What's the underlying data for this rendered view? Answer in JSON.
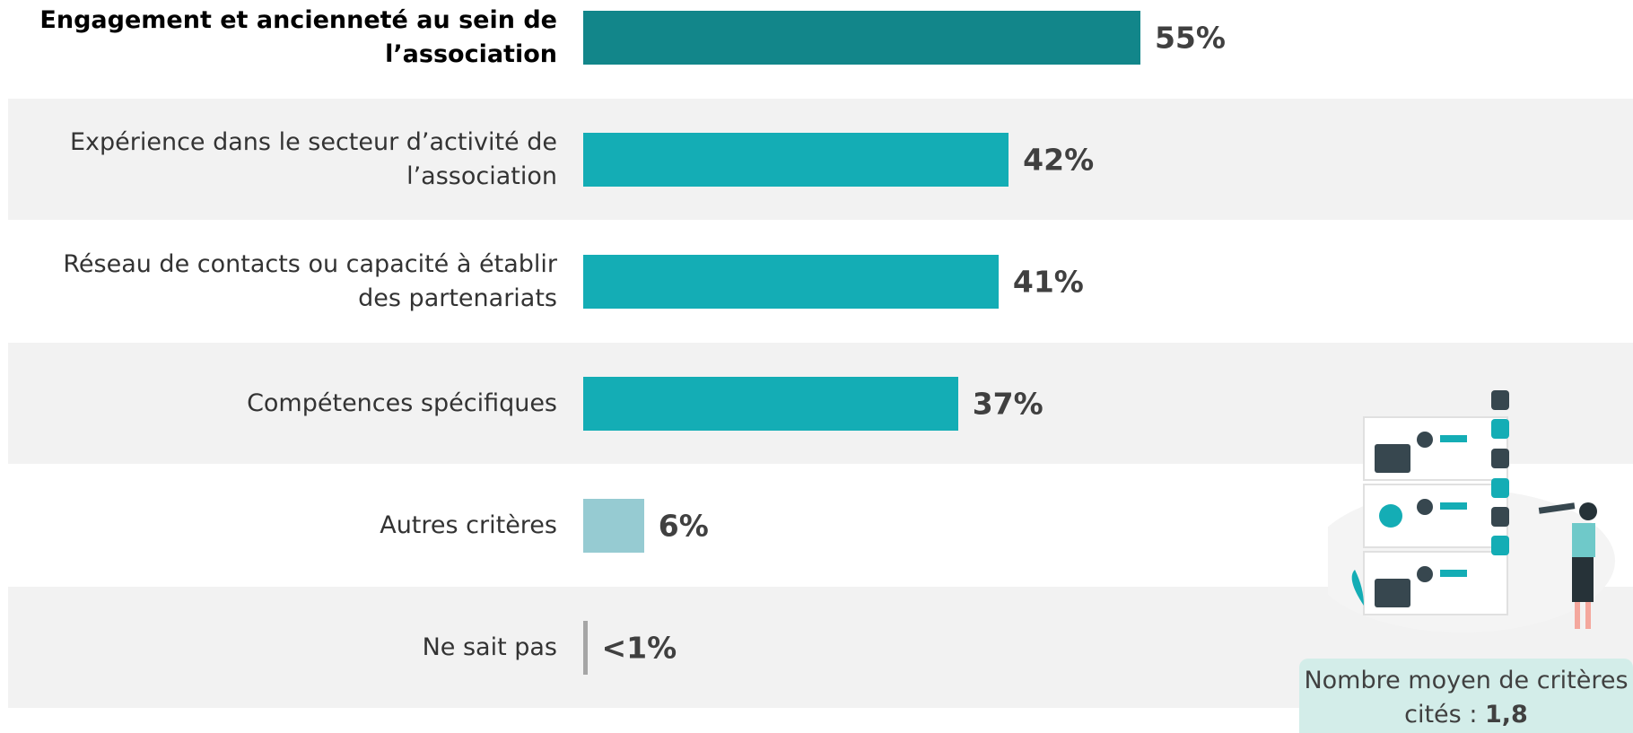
{
  "chart_data": {
    "type": "bar",
    "orientation": "horizontal",
    "categories": [
      "Engagement et ancienneté au sein de l’association",
      "Expérience dans le secteur d’activité de l’association",
      "Réseau de contacts ou capacité à établir des partenariats",
      "Compétences spécifiques",
      "Autres critères",
      "Ne sait pas"
    ],
    "values": [
      55,
      42,
      41,
      37,
      6,
      0.4
    ],
    "value_labels": [
      "55%",
      "42%",
      "41%",
      "37%",
      "6%",
      "<1%"
    ],
    "colors": [
      "#12868a",
      "#14adb5",
      "#14adb5",
      "#14adb5",
      "#96cbd2",
      "#a6a6a6"
    ],
    "xlim": [
      0,
      100
    ]
  },
  "note": {
    "text": "Nombre moyen de critères cités :",
    "value": "1,8"
  }
}
